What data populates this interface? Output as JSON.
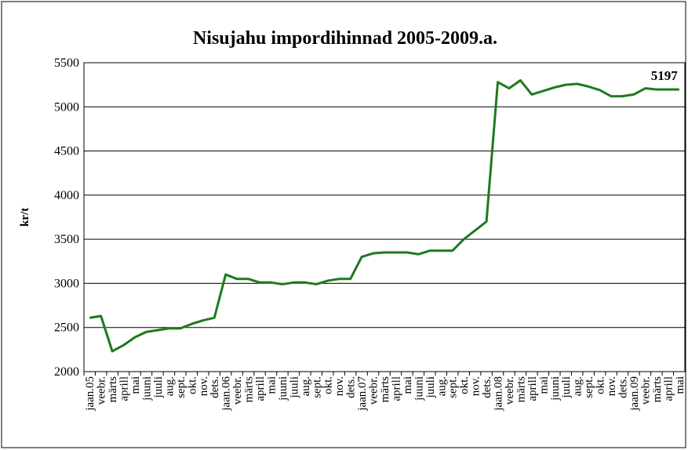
{
  "chart_data": {
    "type": "line",
    "title": "Nisujahu impordihinnad 2005-2009.a.",
    "y_label": "kr/t",
    "categories": [
      "jaan.05",
      "veebr.",
      "märts",
      "aprill",
      "mai",
      "juuni",
      "juuli",
      "aug.",
      "sept.",
      "okt.",
      "nov.",
      "dets.",
      "jaan.06",
      "veebr.",
      "märts",
      "aprill",
      "mai",
      "juuni",
      "juuli",
      "aug.",
      "sept.",
      "okt.",
      "nov.",
      "dets.",
      "jaan.07",
      "veebr.",
      "märts",
      "aprill",
      "mai",
      "juuni",
      "juuli",
      "aug.",
      "sept.",
      "okt.",
      "nov.",
      "dets.",
      "jaan.08",
      "veebr.",
      "märts",
      "aprill",
      "mai",
      "juuni",
      "juuli",
      "aug.",
      "sept.",
      "okt.",
      "nov.",
      "dets.",
      "jaan.09",
      "veebr.",
      "märts",
      "aprill",
      "mai"
    ],
    "series": [
      {
        "name": "Nisujahu",
        "color": "#1e7a1e",
        "values": [
          2610,
          2630,
          2230,
          2300,
          2390,
          2450,
          2470,
          2490,
          2490,
          2540,
          2580,
          2610,
          3100,
          3050,
          3050,
          3010,
          3010,
          2990,
          3010,
          3010,
          2990,
          3030,
          3050,
          3050,
          3300,
          3340,
          3350,
          3350,
          3350,
          3330,
          3370,
          3370,
          3370,
          3500,
          3600,
          3700,
          5280,
          5210,
          5300,
          5140,
          5180,
          5220,
          5250,
          5260,
          5230,
          5190,
          5120,
          5120,
          5140,
          5210,
          5197,
          5197,
          5197
        ],
        "value_labels": [
          null,
          null,
          null,
          null,
          null,
          null,
          null,
          null,
          null,
          null,
          null,
          null,
          null,
          null,
          null,
          null,
          null,
          null,
          null,
          null,
          null,
          null,
          null,
          null,
          null,
          null,
          null,
          null,
          null,
          null,
          null,
          null,
          null,
          null,
          null,
          null,
          null,
          null,
          null,
          null,
          null,
          null,
          null,
          null,
          null,
          null,
          null,
          null,
          null,
          null,
          null,
          null,
          "5197"
        ]
      }
    ],
    "ylim": [
      2000,
      5500
    ],
    "yticks": [
      2000,
      2500,
      3000,
      3500,
      4000,
      4500,
      5000,
      5500
    ],
    "grid": true
  }
}
